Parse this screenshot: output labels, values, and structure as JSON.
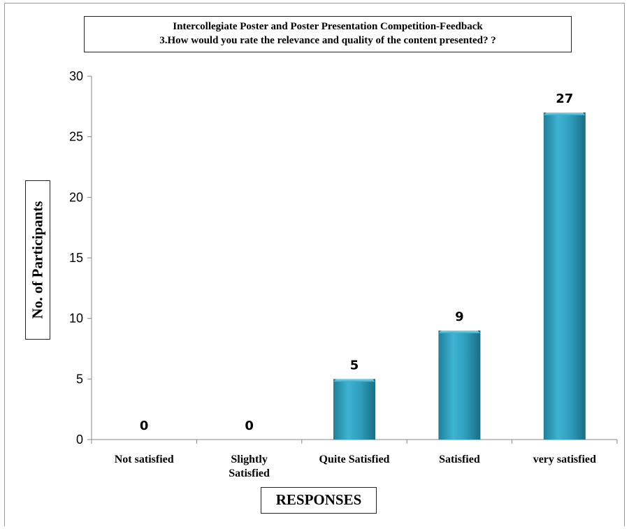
{
  "chart_data": {
    "type": "bar",
    "title_line1": "Intercollegiate Poster and Poster Presentation Competition-Feedback",
    "title_line2": "3.How would you rate the relevance and quality of the content presented? ?",
    "xlabel": "RESPONSES",
    "ylabel": "No. of Participants",
    "categories": [
      [
        "Not satisfied"
      ],
      [
        "Slightly",
        "Satisfied"
      ],
      [
        "Quite Satisfied"
      ],
      [
        "Satisfied"
      ],
      [
        "very satisfied"
      ]
    ],
    "values": [
      0,
      0,
      5,
      9,
      27
    ],
    "data_labels": [
      "0",
      "0",
      "5",
      "9",
      "27"
    ],
    "ylim": [
      0,
      30
    ],
    "yticks": [
      0,
      5,
      10,
      15,
      20,
      25,
      30
    ],
    "grid": false,
    "legend": "none",
    "bar_color": "#2f9fbd"
  }
}
